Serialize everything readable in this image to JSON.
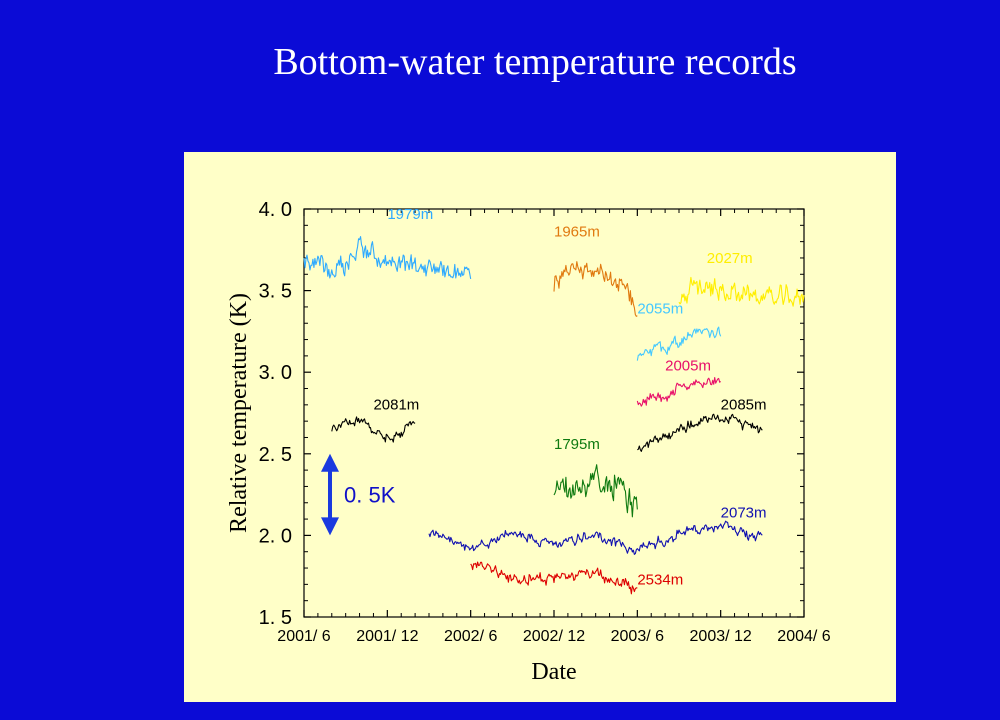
{
  "title": "Bottom-water temperature records",
  "chart_data": {
    "type": "line",
    "title": "",
    "xlabel": "Date",
    "ylabel": "Relative temperature (K)",
    "ylim": [
      1.5,
      4.0
    ],
    "xlim": [
      "2001-06",
      "2004-06"
    ],
    "yticks": [
      "1. 5",
      "2. 0",
      "2. 5",
      "3. 0",
      "3. 5",
      "4. 0"
    ],
    "xticks": [
      "2001/ 6",
      "2001/ 12",
      "2002/ 6",
      "2002/ 12",
      "2003/ 6",
      "2003/ 12",
      "2004/ 6"
    ],
    "scale_bar": {
      "label": "0. 5K",
      "from": 2.0,
      "to": 2.5
    },
    "grid": false,
    "series": [
      {
        "name": "1979m",
        "color": "#2eaaff",
        "x_range": [
          "2001-06",
          "2002-06"
        ],
        "level": 3.66,
        "trend": 0.0,
        "noise": 0.05,
        "points": [
          [
            "2001-06",
            3.68
          ],
          [
            "2001-09",
            3.62
          ],
          [
            "2001-10",
            3.78
          ],
          [
            "2001-12",
            3.66
          ],
          [
            "2002-03",
            3.65
          ],
          [
            "2002-06",
            3.6
          ]
        ]
      },
      {
        "name": "1965m",
        "color": "#e07a10",
        "x_range": [
          "2002-12",
          "2003-06"
        ],
        "level": 3.62,
        "trend": 0.0,
        "noise": 0.05,
        "points": [
          [
            "2002-12",
            3.56
          ],
          [
            "2003-01",
            3.62
          ],
          [
            "2003-03",
            3.66
          ],
          [
            "2003-05",
            3.58
          ],
          [
            "2003-06",
            3.38
          ]
        ]
      },
      {
        "name": "2027m",
        "color": "#ffee00",
        "x_range": [
          "2003-09",
          "2004-06"
        ],
        "level": 3.48,
        "trend": 0.0,
        "noise": 0.05,
        "points": [
          [
            "2003-09",
            3.44
          ],
          [
            "2003-10",
            3.52
          ],
          [
            "2003-12",
            3.5
          ],
          [
            "2004-03",
            3.46
          ],
          [
            "2004-06",
            3.45
          ]
        ]
      },
      {
        "name": "2055m",
        "color": "#44c8ff",
        "x_range": [
          "2003-06",
          "2003-12"
        ],
        "level": 3.2,
        "trend": 0.0,
        "noise": 0.03,
        "points": [
          [
            "2003-06",
            3.08
          ],
          [
            "2003-08",
            3.16
          ],
          [
            "2003-10",
            3.24
          ],
          [
            "2003-12",
            3.24
          ]
        ]
      },
      {
        "name": "2005m",
        "color": "#e8106a",
        "x_range": [
          "2003-06",
          "2003-12"
        ],
        "level": 2.86,
        "trend": 0.0,
        "noise": 0.03,
        "points": [
          [
            "2003-06",
            2.8
          ],
          [
            "2003-08",
            2.86
          ],
          [
            "2003-10",
            2.93
          ],
          [
            "2003-12",
            2.95
          ]
        ]
      },
      {
        "name": "2081m",
        "color": "#000000",
        "x_range": [
          "2001-06",
          "2002-02"
        ],
        "level": 2.65,
        "trend": 0.0,
        "noise": 0.025,
        "points": [
          [
            "2001-08",
            2.66
          ],
          [
            "2001-10",
            2.7
          ],
          [
            "2001-12",
            2.6
          ],
          [
            "2002-02",
            2.68
          ]
        ]
      },
      {
        "name": "2085m",
        "color": "#000000",
        "x_range": [
          "2003-06",
          "2004-03"
        ],
        "level": 2.64,
        "trend": 0.0,
        "noise": 0.025,
        "points": [
          [
            "2003-06",
            2.52
          ],
          [
            "2003-09",
            2.66
          ],
          [
            "2003-12",
            2.72
          ],
          [
            "2004-02",
            2.68
          ],
          [
            "2004-04",
            2.62
          ]
        ]
      },
      {
        "name": "1795m",
        "color": "#0f7a10",
        "x_range": [
          "2002-12",
          "2003-06"
        ],
        "level": 2.28,
        "trend": 0.0,
        "noise": 0.07,
        "points": [
          [
            "2002-12",
            2.24
          ],
          [
            "2003-02",
            2.3
          ],
          [
            "2003-04",
            2.34
          ],
          [
            "2003-06",
            2.22
          ]
        ]
      },
      {
        "name": "2073m",
        "color": "#1010b0",
        "x_range": [
          "2002-03",
          "2004-03"
        ],
        "level": 1.97,
        "trend": 0.0,
        "noise": 0.025,
        "points": [
          [
            "2002-03",
            2.02
          ],
          [
            "2002-06",
            1.9
          ],
          [
            "2002-09",
            2.02
          ],
          [
            "2002-12",
            1.94
          ],
          [
            "2003-03",
            2.0
          ],
          [
            "2003-06",
            1.9
          ],
          [
            "2003-09",
            2.02
          ],
          [
            "2003-12",
            2.06
          ],
          [
            "2004-03",
            1.98
          ]
        ]
      },
      {
        "name": "2534m",
        "color": "#dd0000",
        "x_range": [
          "2002-06",
          "2003-06"
        ],
        "level": 1.76,
        "trend": 0.0,
        "noise": 0.03,
        "points": [
          [
            "2002-06",
            1.84
          ],
          [
            "2002-09",
            1.74
          ],
          [
            "2002-12",
            1.74
          ],
          [
            "2003-03",
            1.78
          ],
          [
            "2003-06",
            1.66
          ]
        ]
      }
    ]
  }
}
